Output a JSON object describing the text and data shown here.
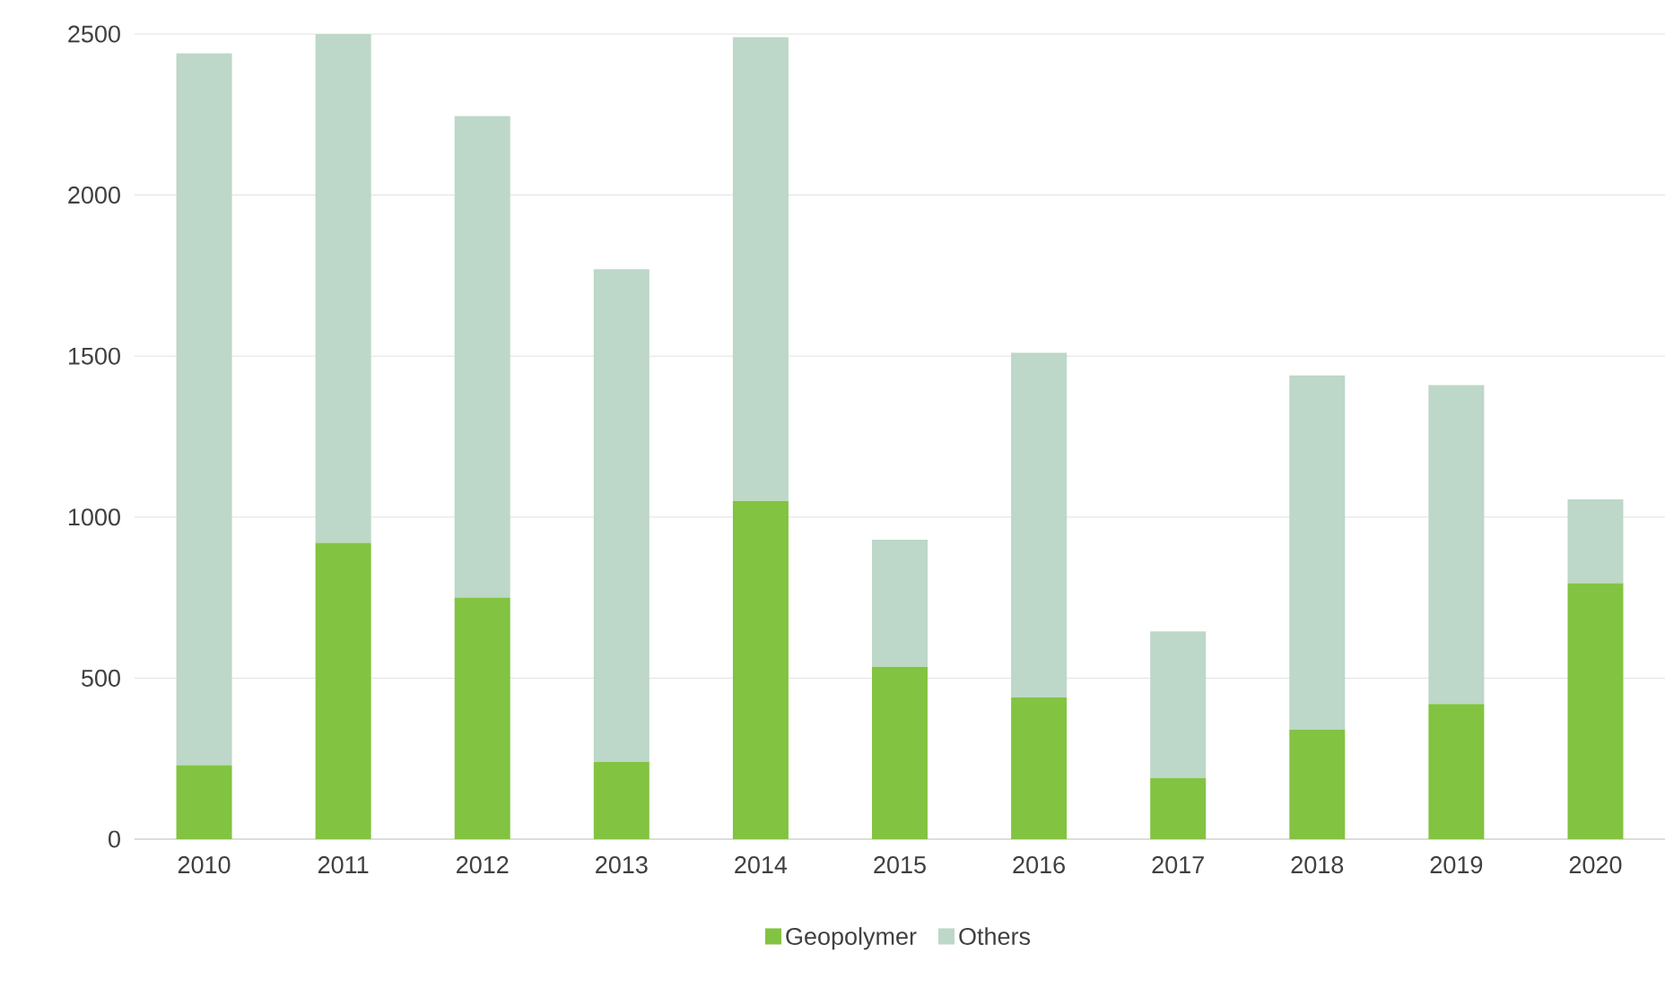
{
  "chart_data": {
    "type": "bar",
    "stacked": true,
    "categories": [
      "2010",
      "2011",
      "2012",
      "2013",
      "2014",
      "2015",
      "2016",
      "2017",
      "2018",
      "2019",
      "2020"
    ],
    "series": [
      {
        "name": "Geopolymer",
        "color": "#82c341",
        "values": [
          230,
          920,
          750,
          240,
          1050,
          535,
          440,
          190,
          340,
          420,
          795
        ]
      },
      {
        "name": "Others",
        "color": "#bdd7c8",
        "values": [
          2210,
          1580,
          1495,
          1530,
          1440,
          395,
          1070,
          455,
          1100,
          990,
          260
        ]
      }
    ],
    "ylim": [
      0,
      2500
    ],
    "yticks": [
      0,
      500,
      1000,
      1500,
      2000,
      2500
    ],
    "grid": "y",
    "legend": "bottom"
  }
}
